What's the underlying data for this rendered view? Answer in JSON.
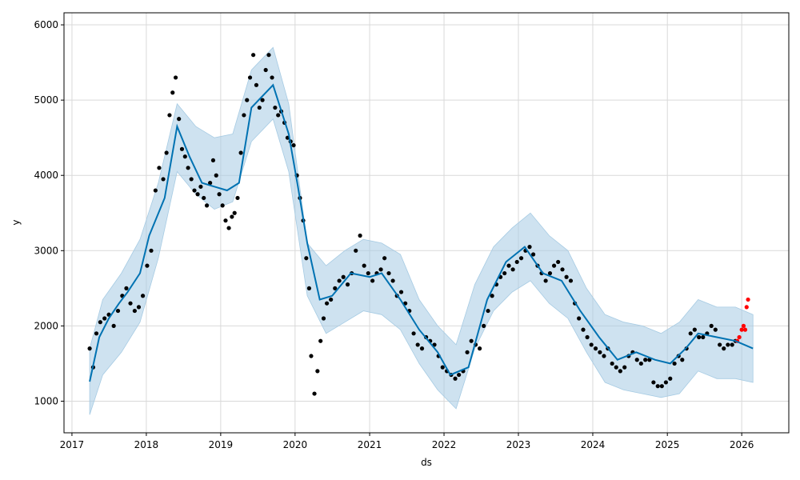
{
  "chart_data": {
    "type": "scatter",
    "title": "",
    "xlabel": "ds",
    "ylabel": "y",
    "x_ticks": [
      "2017",
      "2018",
      "2019",
      "2020",
      "2021",
      "2022",
      "2023",
      "2024",
      "2025",
      "2026"
    ],
    "y_ticks": [
      1000,
      2000,
      3000,
      4000,
      5000,
      6000
    ],
    "xlim": [
      "2016-11-23",
      "2026-08-20"
    ],
    "ylim": [
      580,
      6160
    ],
    "grid": true,
    "colors": {
      "observed": "#000000",
      "recent": "#ff0000",
      "forecast": "#0072b2",
      "interval": "#a6cbe3"
    },
    "series": [
      {
        "role": "forecast",
        "x": [
          "2017-03-29",
          "2017-05-15",
          "2017-07-01",
          "2017-08-20",
          "2017-10-01",
          "2017-12-01",
          "2018-01-15",
          "2018-04-01",
          "2018-06-01",
          "2018-08-01",
          "2018-10-01",
          "2018-12-01",
          "2019-02-01",
          "2019-04-01",
          "2019-06-01",
          "2019-09-15",
          "2019-12-01",
          "2020-01-15",
          "2020-03-01",
          "2020-05-01",
          "2020-07-01",
          "2020-10-01",
          "2021-01-01",
          "2021-03-01",
          "2021-06-01",
          "2021-09-01",
          "2021-12-01",
          "2022-02-01",
          "2022-05-01",
          "2022-08-01",
          "2022-11-01",
          "2023-02-01",
          "2023-05-01",
          "2023-08-01",
          "2023-11-01",
          "2024-02-01",
          "2024-05-01",
          "2024-08-01",
          "2024-11-01",
          "2025-01-15",
          "2025-04-01",
          "2025-06-01",
          "2025-09-01",
          "2025-12-01",
          "2026-02-25"
        ],
        "y": [
          1260,
          1850,
          2100,
          2300,
          2450,
          2700,
          3200,
          3700,
          4650,
          4250,
          3900,
          3850,
          3800,
          3900,
          4900,
          5200,
          4550,
          3850,
          3100,
          2350,
          2400,
          2700,
          2650,
          2700,
          2350,
          1950,
          1650,
          1350,
          1450,
          2350,
          2850,
          3050,
          2700,
          2600,
          2200,
          1850,
          1550,
          1650,
          1550,
          1500,
          1700,
          1900,
          1850,
          1800,
          1700
        ]
      },
      {
        "role": "interval_upper",
        "x": [
          "2017-03-29",
          "2017-06-01",
          "2017-09-01",
          "2017-12-01",
          "2018-03-01",
          "2018-06-01",
          "2018-09-01",
          "2018-12-01",
          "2019-03-01",
          "2019-06-01",
          "2019-09-15",
          "2019-12-01",
          "2020-03-01",
          "2020-06-01",
          "2020-09-01",
          "2020-12-01",
          "2021-03-01",
          "2021-06-01",
          "2021-09-01",
          "2021-12-01",
          "2022-03-01",
          "2022-06-01",
          "2022-09-01",
          "2022-12-01",
          "2023-03-01",
          "2023-06-01",
          "2023-09-01",
          "2023-12-01",
          "2024-03-01",
          "2024-06-01",
          "2024-09-01",
          "2024-12-01",
          "2025-03-01",
          "2025-06-01",
          "2025-09-01",
          "2025-12-01",
          "2026-02-25"
        ],
        "y": [
          1700,
          2350,
          2700,
          3150,
          3900,
          4950,
          4650,
          4500,
          4550,
          5400,
          5700,
          4950,
          3100,
          2800,
          3000,
          3150,
          3100,
          2950,
          2350,
          2000,
          1750,
          2550,
          3050,
          3300,
          3500,
          3200,
          3000,
          2500,
          2150,
          2050,
          2000,
          1900,
          2050,
          2350,
          2250,
          2250,
          2150
        ]
      },
      {
        "role": "interval_lower",
        "x": [
          "2017-03-29",
          "2017-06-01",
          "2017-09-01",
          "2017-12-01",
          "2018-03-01",
          "2018-06-01",
          "2018-09-01",
          "2018-12-01",
          "2019-03-01",
          "2019-06-01",
          "2019-09-15",
          "2019-12-01",
          "2020-03-01",
          "2020-06-01",
          "2020-09-01",
          "2020-12-01",
          "2021-03-01",
          "2021-06-01",
          "2021-09-01",
          "2021-12-01",
          "2022-03-01",
          "2022-06-01",
          "2022-09-01",
          "2022-12-01",
          "2023-03-01",
          "2023-06-01",
          "2023-09-01",
          "2023-12-01",
          "2024-03-01",
          "2024-06-01",
          "2024-09-01",
          "2024-12-01",
          "2025-03-01",
          "2025-06-01",
          "2025-09-01",
          "2025-12-01",
          "2026-02-25"
        ],
        "y": [
          820,
          1350,
          1650,
          2050,
          2900,
          4050,
          3750,
          3550,
          3650,
          4450,
          4750,
          4050,
          2400,
          1900,
          2050,
          2200,
          2150,
          1950,
          1500,
          1150,
          900,
          1700,
          2200,
          2450,
          2600,
          2300,
          2100,
          1650,
          1250,
          1150,
          1100,
          1050,
          1100,
          1400,
          1300,
          1300,
          1250
        ]
      },
      {
        "role": "observed",
        "x": [
          "2017-03-29",
          "2017-04-15",
          "2017-05-01",
          "2017-05-20",
          "2017-06-10",
          "2017-07-01",
          "2017-07-25",
          "2017-08-15",
          "2017-09-05",
          "2017-09-25",
          "2017-10-15",
          "2017-11-05",
          "2017-11-25",
          "2017-12-15",
          "2018-01-05",
          "2018-01-25",
          "2018-02-15",
          "2018-03-05",
          "2018-03-25",
          "2018-04-10",
          "2018-04-25",
          "2018-05-10",
          "2018-05-25",
          "2018-06-10",
          "2018-06-25",
          "2018-07-10",
          "2018-07-25",
          "2018-08-10",
          "2018-08-25",
          "2018-09-10",
          "2018-09-25",
          "2018-10-10",
          "2018-10-25",
          "2018-11-10",
          "2018-11-25",
          "2018-12-10",
          "2018-12-25",
          "2019-01-10",
          "2019-01-25",
          "2019-02-10",
          "2019-02-25",
          "2019-03-10",
          "2019-03-25",
          "2019-04-10",
          "2019-04-25",
          "2019-05-10",
          "2019-05-25",
          "2019-06-10",
          "2019-06-25",
          "2019-07-10",
          "2019-07-25",
          "2019-08-10",
          "2019-08-25",
          "2019-09-10",
          "2019-09-25",
          "2019-10-10",
          "2019-10-25",
          "2019-11-10",
          "2019-11-25",
          "2019-12-10",
          "2019-12-25",
          "2020-01-10",
          "2020-01-25",
          "2020-02-10",
          "2020-02-25",
          "2020-03-10",
          "2020-03-20",
          "2020-04-05",
          "2020-04-20",
          "2020-05-05",
          "2020-05-20",
          "2020-06-05",
          "2020-06-25",
          "2020-07-15",
          "2020-08-05",
          "2020-08-25",
          "2020-09-15",
          "2020-10-05",
          "2020-10-25",
          "2020-11-15",
          "2020-12-05",
          "2020-12-25",
          "2021-01-15",
          "2021-02-05",
          "2021-02-25",
          "2021-03-15",
          "2021-04-05",
          "2021-04-25",
          "2021-05-15",
          "2021-06-05",
          "2021-06-25",
          "2021-07-15",
          "2021-08-05",
          "2021-08-25",
          "2021-09-15",
          "2021-10-05",
          "2021-10-25",
          "2021-11-15",
          "2021-12-05",
          "2021-12-25",
          "2022-01-15",
          "2022-02-05",
          "2022-02-25",
          "2022-03-15",
          "2022-04-05",
          "2022-04-25",
          "2022-05-15",
          "2022-06-05",
          "2022-06-25",
          "2022-07-15",
          "2022-08-05",
          "2022-08-25",
          "2022-09-15",
          "2022-10-05",
          "2022-10-25",
          "2022-11-15",
          "2022-12-05",
          "2022-12-25",
          "2023-01-15",
          "2023-02-05",
          "2023-02-25",
          "2023-03-15",
          "2023-04-05",
          "2023-04-25",
          "2023-05-15",
          "2023-06-05",
          "2023-06-25",
          "2023-07-15",
          "2023-08-05",
          "2023-08-25",
          "2023-09-15",
          "2023-10-05",
          "2023-10-25",
          "2023-11-15",
          "2023-12-05",
          "2023-12-25",
          "2024-01-15",
          "2024-02-05",
          "2024-02-25",
          "2024-03-15",
          "2024-04-05",
          "2024-04-25",
          "2024-05-15",
          "2024-06-05",
          "2024-06-25",
          "2024-07-15",
          "2024-08-05",
          "2024-08-25",
          "2024-09-15",
          "2024-10-05",
          "2024-10-25",
          "2024-11-15",
          "2024-12-05",
          "2024-12-25",
          "2025-01-15",
          "2025-02-05",
          "2025-02-25",
          "2025-03-15",
          "2025-04-05",
          "2025-04-25",
          "2025-05-15",
          "2025-06-05",
          "2025-06-25",
          "2025-07-15",
          "2025-08-05",
          "2025-08-25",
          "2025-09-15",
          "2025-10-05",
          "2025-10-25",
          "2025-11-15",
          "2025-12-01"
        ],
        "y": [
          1700,
          1450,
          1900,
          2050,
          2100,
          2150,
          2000,
          2200,
          2400,
          2500,
          2300,
          2200,
          2250,
          2400,
          2800,
          3000,
          3800,
          4100,
          3950,
          4300,
          4800,
          5100,
          5300,
          4750,
          4350,
          4250,
          4100,
          3950,
          3800,
          3750,
          3850,
          3700,
          3600,
          3900,
          4200,
          4000,
          3750,
          3600,
          3400,
          3300,
          3450,
          3500,
          3700,
          4300,
          4800,
          5000,
          5300,
          5600,
          5200,
          4900,
          5000,
          5400,
          5600,
          5300,
          4900,
          4800,
          4850,
          4700,
          4500,
          4450,
          4400,
          4000,
          3700,
          3400,
          2900,
          2500,
          1600,
          1100,
          1400,
          1800,
          2100,
          2300,
          2350,
          2500,
          2600,
          2650,
          2550,
          2700,
          3000,
          3200,
          2800,
          2700,
          2600,
          2700,
          2750,
          2900,
          2700,
          2600,
          2400,
          2450,
          2300,
          2200,
          1900,
          1750,
          1700,
          1850,
          1800,
          1750,
          1600,
          1450,
          1400,
          1350,
          1300,
          1350,
          1400,
          1650,
          1800,
          1750,
          1700,
          2000,
          2200,
          2400,
          2550,
          2650,
          2700,
          2800,
          2750,
          2850,
          2900,
          3000,
          3050,
          2950,
          2800,
          2700,
          2600,
          2700,
          2800,
          2850,
          2750,
          2650,
          2600,
          2300,
          2100,
          1950,
          1850,
          1750,
          1700,
          1650,
          1600,
          1700,
          1500,
          1450,
          1400,
          1450,
          1600,
          1650,
          1550,
          1500,
          1550,
          1550,
          1250,
          1200,
          1200,
          1250,
          1300,
          1500,
          1600,
          1550,
          1700,
          1900,
          1950,
          1850,
          1850,
          1900,
          2000,
          1950,
          1750,
          1700,
          1750,
          1750,
          1800
        ]
      },
      {
        "role": "recent",
        "x": [
          "2025-12-10",
          "2025-12-20",
          "2026-01-01",
          "2026-01-10",
          "2026-01-18",
          "2026-01-25",
          "2026-02-01"
        ],
        "y": [
          1800,
          1850,
          1950,
          2000,
          1950,
          2250,
          2350
        ]
      }
    ]
  }
}
